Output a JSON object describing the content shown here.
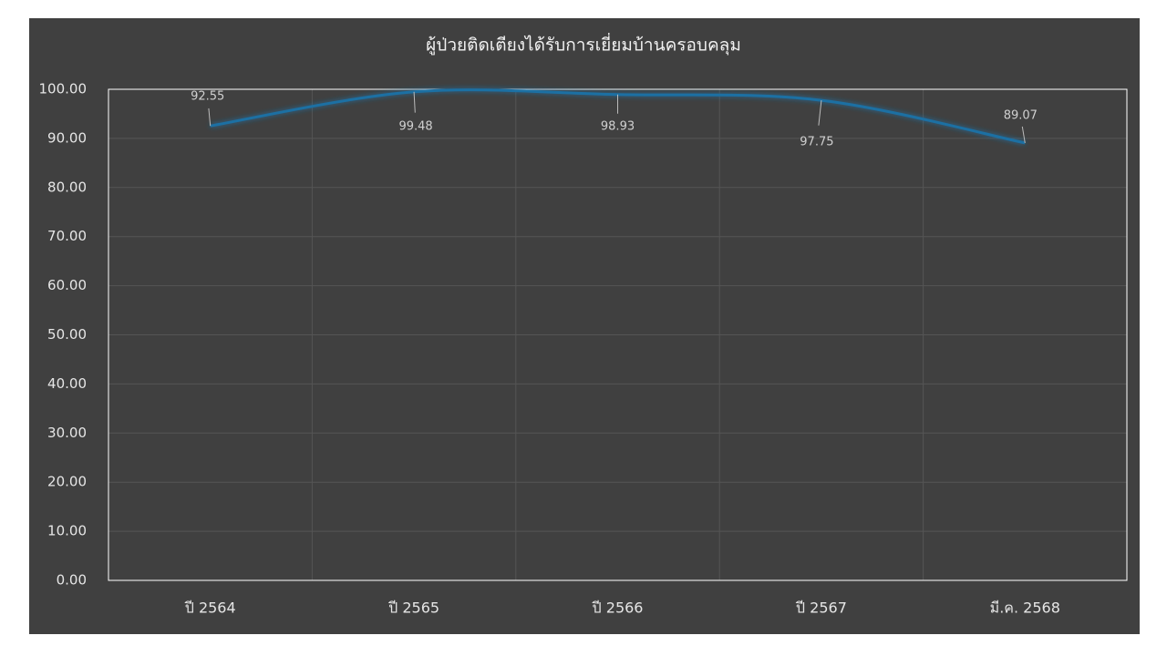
{
  "chart_data": {
    "type": "line",
    "title": "ผู้ป่วยติดเตียงได้รับการเยี่ยมบ้านครอบคลุม",
    "categories": [
      "ปี 2564",
      "ปี 2565",
      "ปี 2566",
      "ปี 2567",
      "มี.ค. 2568"
    ],
    "series": [
      {
        "name": "ผู้ป่วยติดเตียงได้รับการเยี่ยมบ้านครอบคลุม",
        "color": "#1f6fa3",
        "values": [
          92.55,
          99.48,
          98.93,
          97.75,
          89.07
        ]
      }
    ],
    "ylim": [
      0,
      100
    ],
    "yticks": [
      {
        "value": 0,
        "label": "0.00"
      },
      {
        "value": 10,
        "label": "10.00"
      },
      {
        "value": 20,
        "label": "20.00"
      },
      {
        "value": 30,
        "label": "30.00"
      },
      {
        "value": 40,
        "label": "40.00"
      },
      {
        "value": 50,
        "label": "50.00"
      },
      {
        "value": 60,
        "label": "60.00"
      },
      {
        "value": 70,
        "label": "70.00"
      },
      {
        "value": 80,
        "label": "80.00"
      },
      {
        "value": 90,
        "label": "90.00"
      },
      {
        "value": 100,
        "label": "100.00"
      }
    ],
    "grid": true,
    "smooth": true
  }
}
